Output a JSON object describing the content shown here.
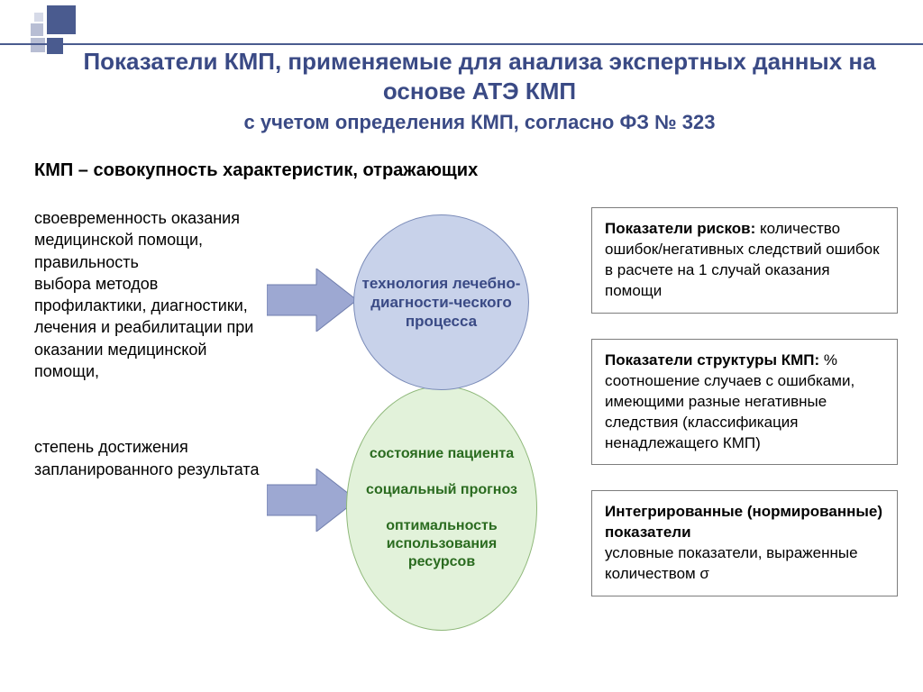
{
  "colors": {
    "accent": "#3a4a85",
    "circle1_bg": "#c8d2ea",
    "circle1_text": "#3a4a85",
    "circle2_bg": "#e2f2da",
    "circle2_text": "#2a6b1f",
    "arrow_fill": "#9da8d2",
    "box_border": "#7d7d7d"
  },
  "title": {
    "line1": "Показатели КМП, применяемые для анализа экспертных данных на основе АТЭ КМП",
    "line2": "с учетом определения КМП, согласно ФЗ № 323"
  },
  "subtitle": "КМП – совокупность характеристик, отражающих",
  "left": {
    "block1": "своевременность оказания медицинской помощи, правильность\nвыбора методов профилактики, диагностики, лечения и реабилитации при оказании медицинской помощи,",
    "block2": "степень достижения запланированного результата"
  },
  "center": {
    "circle1": "технология лечебно-диагности-ческого процесса",
    "circle2": {
      "row1": "состояние пациента",
      "row2": "социальный прогноз",
      "row3": "оптимальность использования ресурсов"
    }
  },
  "right": {
    "box1": {
      "title": "Показатели рисков:",
      "body": "количество ошибок/негативных следствий ошибок в расчете на 1 случай оказания помощи"
    },
    "box2": {
      "title": "Показатели структуры КМП:",
      "body": "%  соотношение случаев с ошибками, имеющими разные негативные следствия  (классификация ненадлежащего КМП)"
    },
    "box3": {
      "title": "Интегрированные (нормированные) показатели",
      "body": "условные показатели, выраженные количеством σ"
    }
  }
}
